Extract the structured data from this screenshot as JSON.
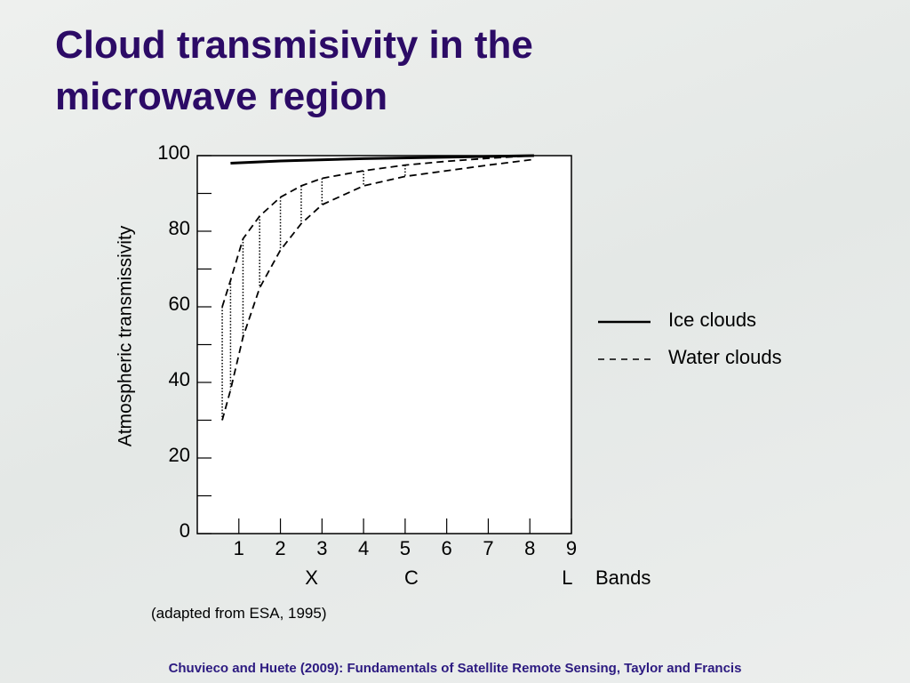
{
  "title": "Cloud transmisivity in the microwave region",
  "caption": "(adapted from ESA, 1995)",
  "footer": "Chuvieco and Huete (2009): Fundamentals of Satellite Remote Sensing, Taylor and Francis",
  "chart_data": {
    "type": "line",
    "ylabel": "Atmospheric transmissivity",
    "xlabel": "Bands",
    "xlim": [
      0,
      9
    ],
    "ylim": [
      0,
      100
    ],
    "xticks": [
      1,
      2,
      3,
      4,
      5,
      6,
      7,
      8,
      9
    ],
    "yticks": [
      0,
      20,
      40,
      60,
      80,
      100
    ],
    "minor_yticks": [
      10,
      30,
      50,
      70,
      90
    ],
    "band_labels": [
      {
        "value": 2.75,
        "label": "X"
      },
      {
        "value": 5.15,
        "label": "C"
      },
      {
        "value": 8.9,
        "label": "L"
      }
    ],
    "legend": "right",
    "series": [
      {
        "name": "Ice clouds",
        "color": "#000000",
        "dash": false,
        "x": [
          0.8,
          2,
          4,
          6,
          8.1
        ],
        "values": [
          98,
          98.6,
          99.2,
          99.6,
          100
        ]
      },
      {
        "name": "Water clouds",
        "color": "#000000",
        "dash": true,
        "x": [
          0.6,
          0.8,
          1.1,
          1.5,
          2,
          2.5,
          3,
          4,
          5,
          6,
          7,
          8.1
        ],
        "values": [
          60,
          67,
          78,
          84,
          89,
          92,
          94,
          96,
          97.5,
          98.5,
          99.3,
          100
        ],
        "values_low": [
          30,
          38,
          52,
          65,
          75,
          82,
          87,
          92,
          94.5,
          96,
          97.5,
          99
        ]
      }
    ]
  }
}
